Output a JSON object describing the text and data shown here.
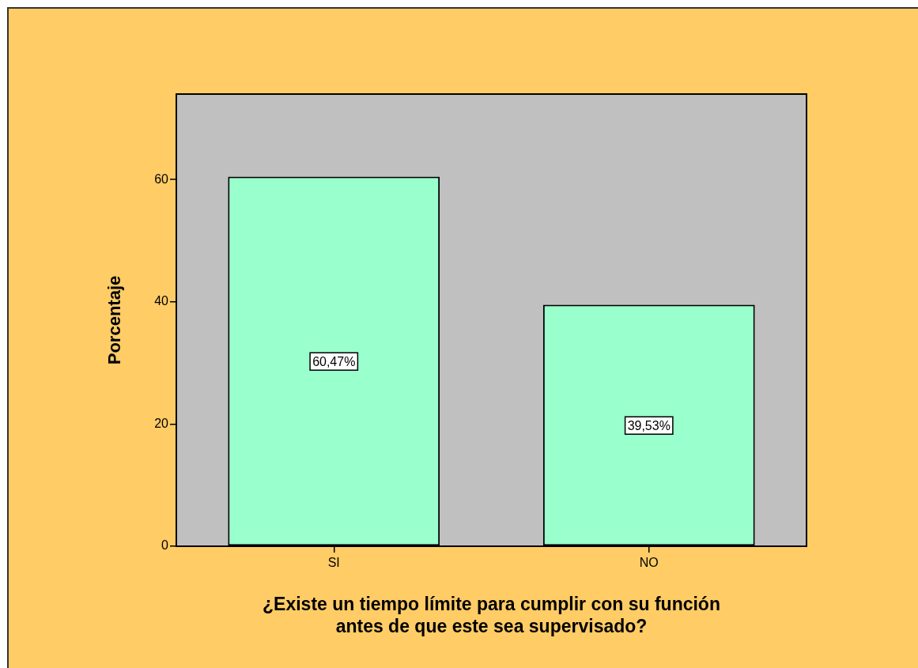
{
  "chart_data": {
    "type": "bar",
    "xlabel": "¿Existe un tiempo límite para cumplir con su función\nantes de que este sea supervisado?",
    "ylabel": "Porcentaje",
    "categories": [
      "SI",
      "NO"
    ],
    "values": [
      60.47,
      39.53
    ],
    "value_labels": [
      "60,47%",
      "39,53%"
    ],
    "color": "#99ffcc",
    "ylim": [
      0,
      74
    ],
    "yticks": [
      0,
      20,
      40,
      60
    ]
  }
}
